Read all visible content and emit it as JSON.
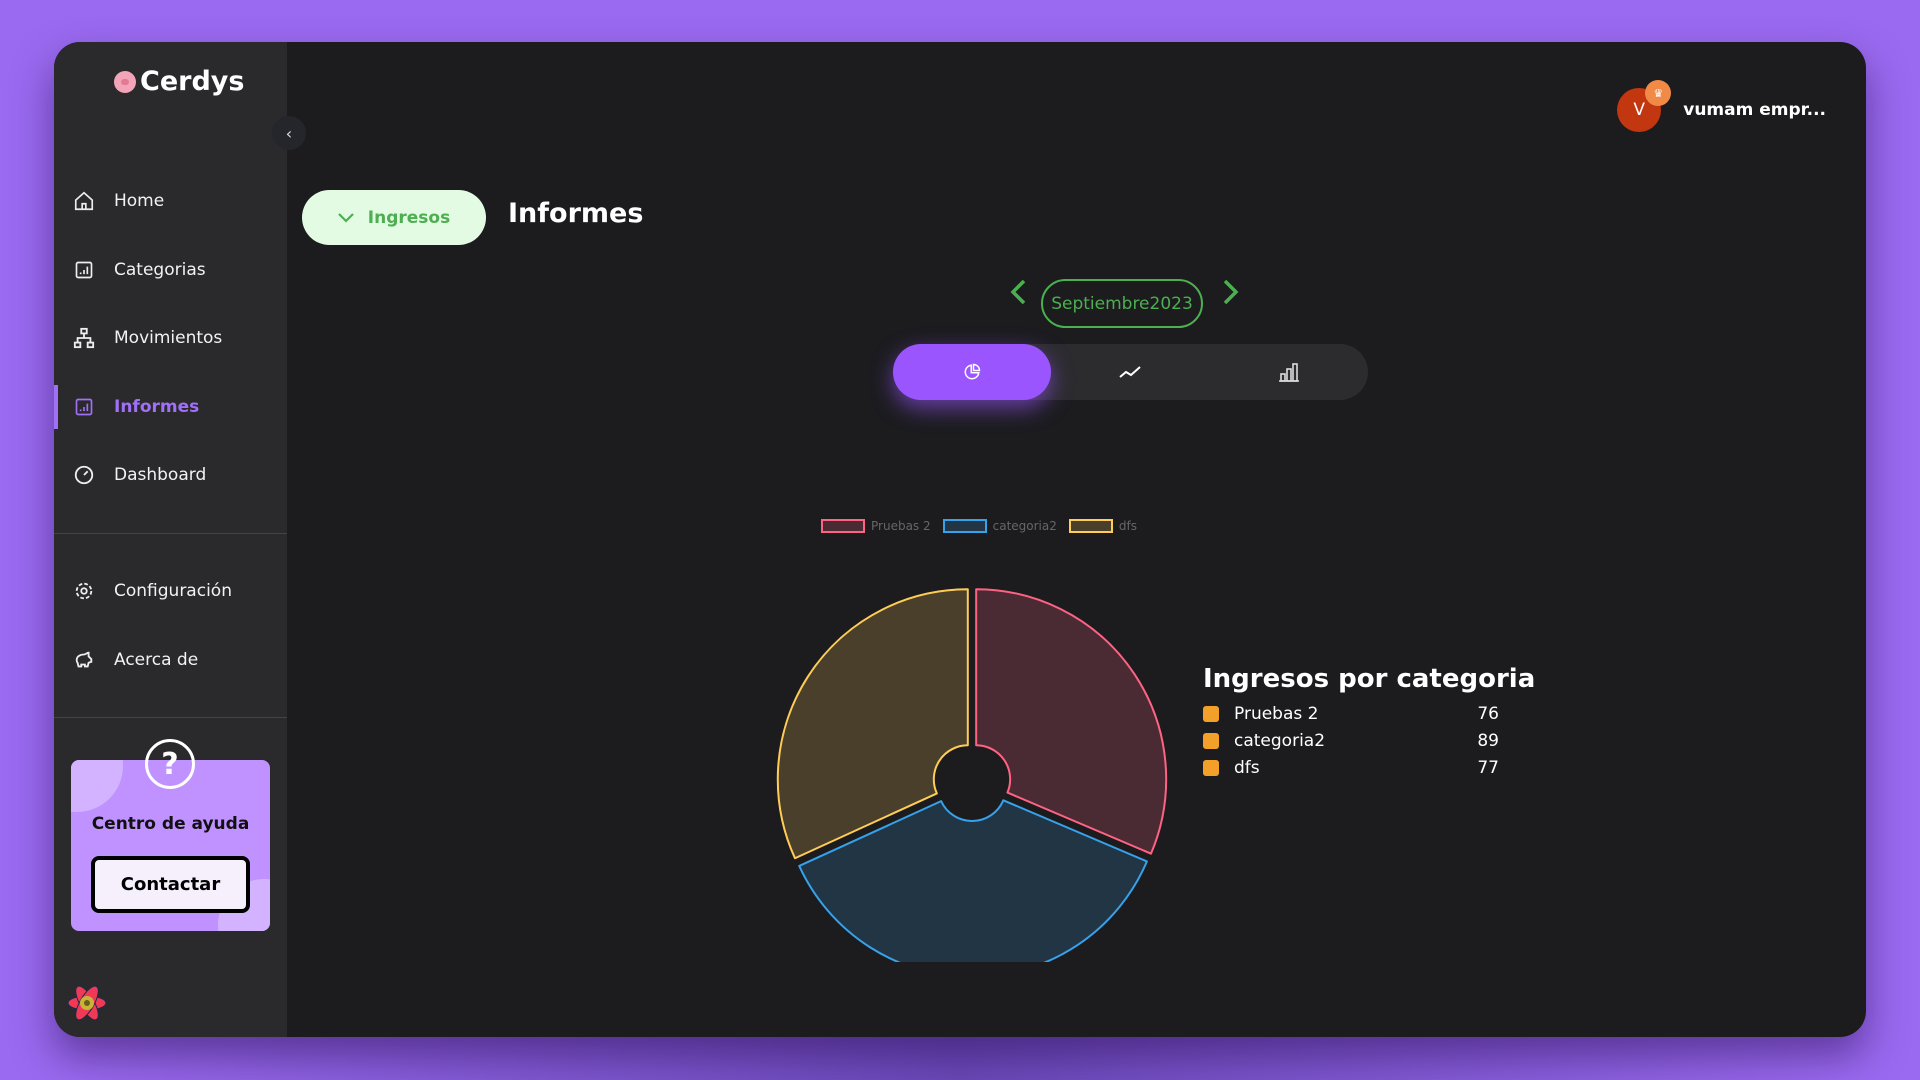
{
  "brand": {
    "name": "Cerdys"
  },
  "sidebar": {
    "items": [
      {
        "label": "Home",
        "icon": "home-icon"
      },
      {
        "label": "Categorias",
        "icon": "chart-square-icon"
      },
      {
        "label": "Movimientos",
        "icon": "hierarchy-icon"
      },
      {
        "label": "Informes",
        "icon": "report-icon",
        "active": true
      },
      {
        "label": "Dashboard",
        "icon": "gauge-icon"
      }
    ],
    "secondary": [
      {
        "label": "Configuración",
        "icon": "gear-icon"
      },
      {
        "label": "Acerca de",
        "icon": "piggy-bank-icon"
      }
    ],
    "help": {
      "title": "Centro de ayuda",
      "button": "Contactar",
      "icon": "?"
    }
  },
  "header": {
    "type_selector": "Ingresos",
    "title": "Informes",
    "user": {
      "initial": "V",
      "name": "vumam empr..."
    }
  },
  "period": {
    "label": "Septiembre2023"
  },
  "view_toggle": {
    "options": [
      "pie-chart-icon",
      "line-chart-icon",
      "bar-chart-icon"
    ],
    "active": 0
  },
  "colors": {
    "accent": "#9b55ff",
    "green": "#4caf50"
  },
  "chart_data": {
    "type": "pie",
    "categories": [
      "Pruebas 2",
      "categoria2",
      "dfs"
    ],
    "values": [
      76,
      89,
      77
    ],
    "colors": [
      "#ff6384",
      "#36a2eb",
      "#ffcd56"
    ],
    "legend": "top"
  },
  "summary": {
    "title": "Ingresos por categoria",
    "rows": [
      {
        "label": "Pruebas 2",
        "value": "76"
      },
      {
        "label": "categoria2",
        "value": "89"
      },
      {
        "label": "dfs",
        "value": "77"
      }
    ]
  }
}
